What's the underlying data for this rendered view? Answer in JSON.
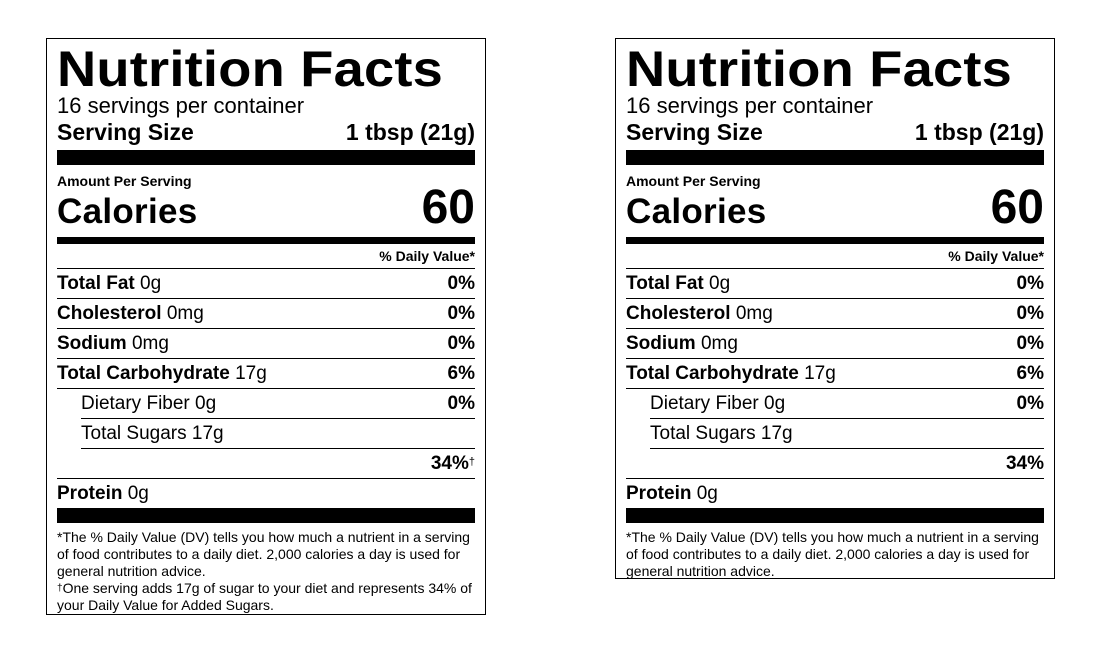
{
  "labels": [
    {
      "title": "Nutrition Facts",
      "servings_per_container": "16 servings per container",
      "serving_size_label": "Serving Size",
      "serving_size_value": "1 tbsp (21g)",
      "amount_per_serving": "Amount Per Serving",
      "calories_label": "Calories",
      "calories_value": "60",
      "daily_value_header": "% Daily Value*",
      "nutrients": [
        {
          "name": "Total Fat",
          "amount": "0g",
          "dv": "0%"
        },
        {
          "name": "Cholesterol",
          "amount": "0mg",
          "dv": "0%"
        },
        {
          "name": "Sodium",
          "amount": "0mg",
          "dv": "0%"
        },
        {
          "name": "Total Carbohydrate",
          "amount": "17g",
          "dv": "6%"
        }
      ],
      "dietary_fiber": {
        "label": "Dietary Fiber 0g",
        "dv": "0%"
      },
      "total_sugars": {
        "label": "Total Sugars 17g"
      },
      "added_sugars_dv": "34%",
      "added_sugars_mark": "†",
      "protein": {
        "name": "Protein",
        "amount": "0g"
      },
      "footnote_dv": "*The % Daily Value (DV) tells you how much a nutrient in a serving of food contributes to a daily diet. 2,000 calories a day is used for general nutrition advice.",
      "footnote_sugar_mark": "†",
      "footnote_sugar": "One serving adds 17g of sugar to your diet and represents 34% of your Daily Value for Added Sugars."
    },
    {
      "title": "Nutrition Facts",
      "servings_per_container": "16 servings per container",
      "serving_size_label": "Serving Size",
      "serving_size_value": "1 tbsp (21g)",
      "amount_per_serving": "Amount Per Serving",
      "calories_label": "Calories",
      "calories_value": "60",
      "daily_value_header": "% Daily Value*",
      "nutrients": [
        {
          "name": "Total Fat",
          "amount": "0g",
          "dv": "0%"
        },
        {
          "name": "Cholesterol",
          "amount": "0mg",
          "dv": "0%"
        },
        {
          "name": "Sodium",
          "amount": "0mg",
          "dv": "0%"
        },
        {
          "name": "Total Carbohydrate",
          "amount": "17g",
          "dv": "6%"
        }
      ],
      "dietary_fiber": {
        "label": "Dietary Fiber 0g",
        "dv": "0%"
      },
      "total_sugars": {
        "label": "Total Sugars 17g"
      },
      "added_sugars_dv": "34%",
      "protein": {
        "name": "Protein",
        "amount": "0g"
      },
      "footnote_dv": "*The % Daily Value (DV) tells you how much a nutrient in a serving of food contributes to a daily diet. 2,000 calories a day is used for general nutrition advice."
    }
  ]
}
